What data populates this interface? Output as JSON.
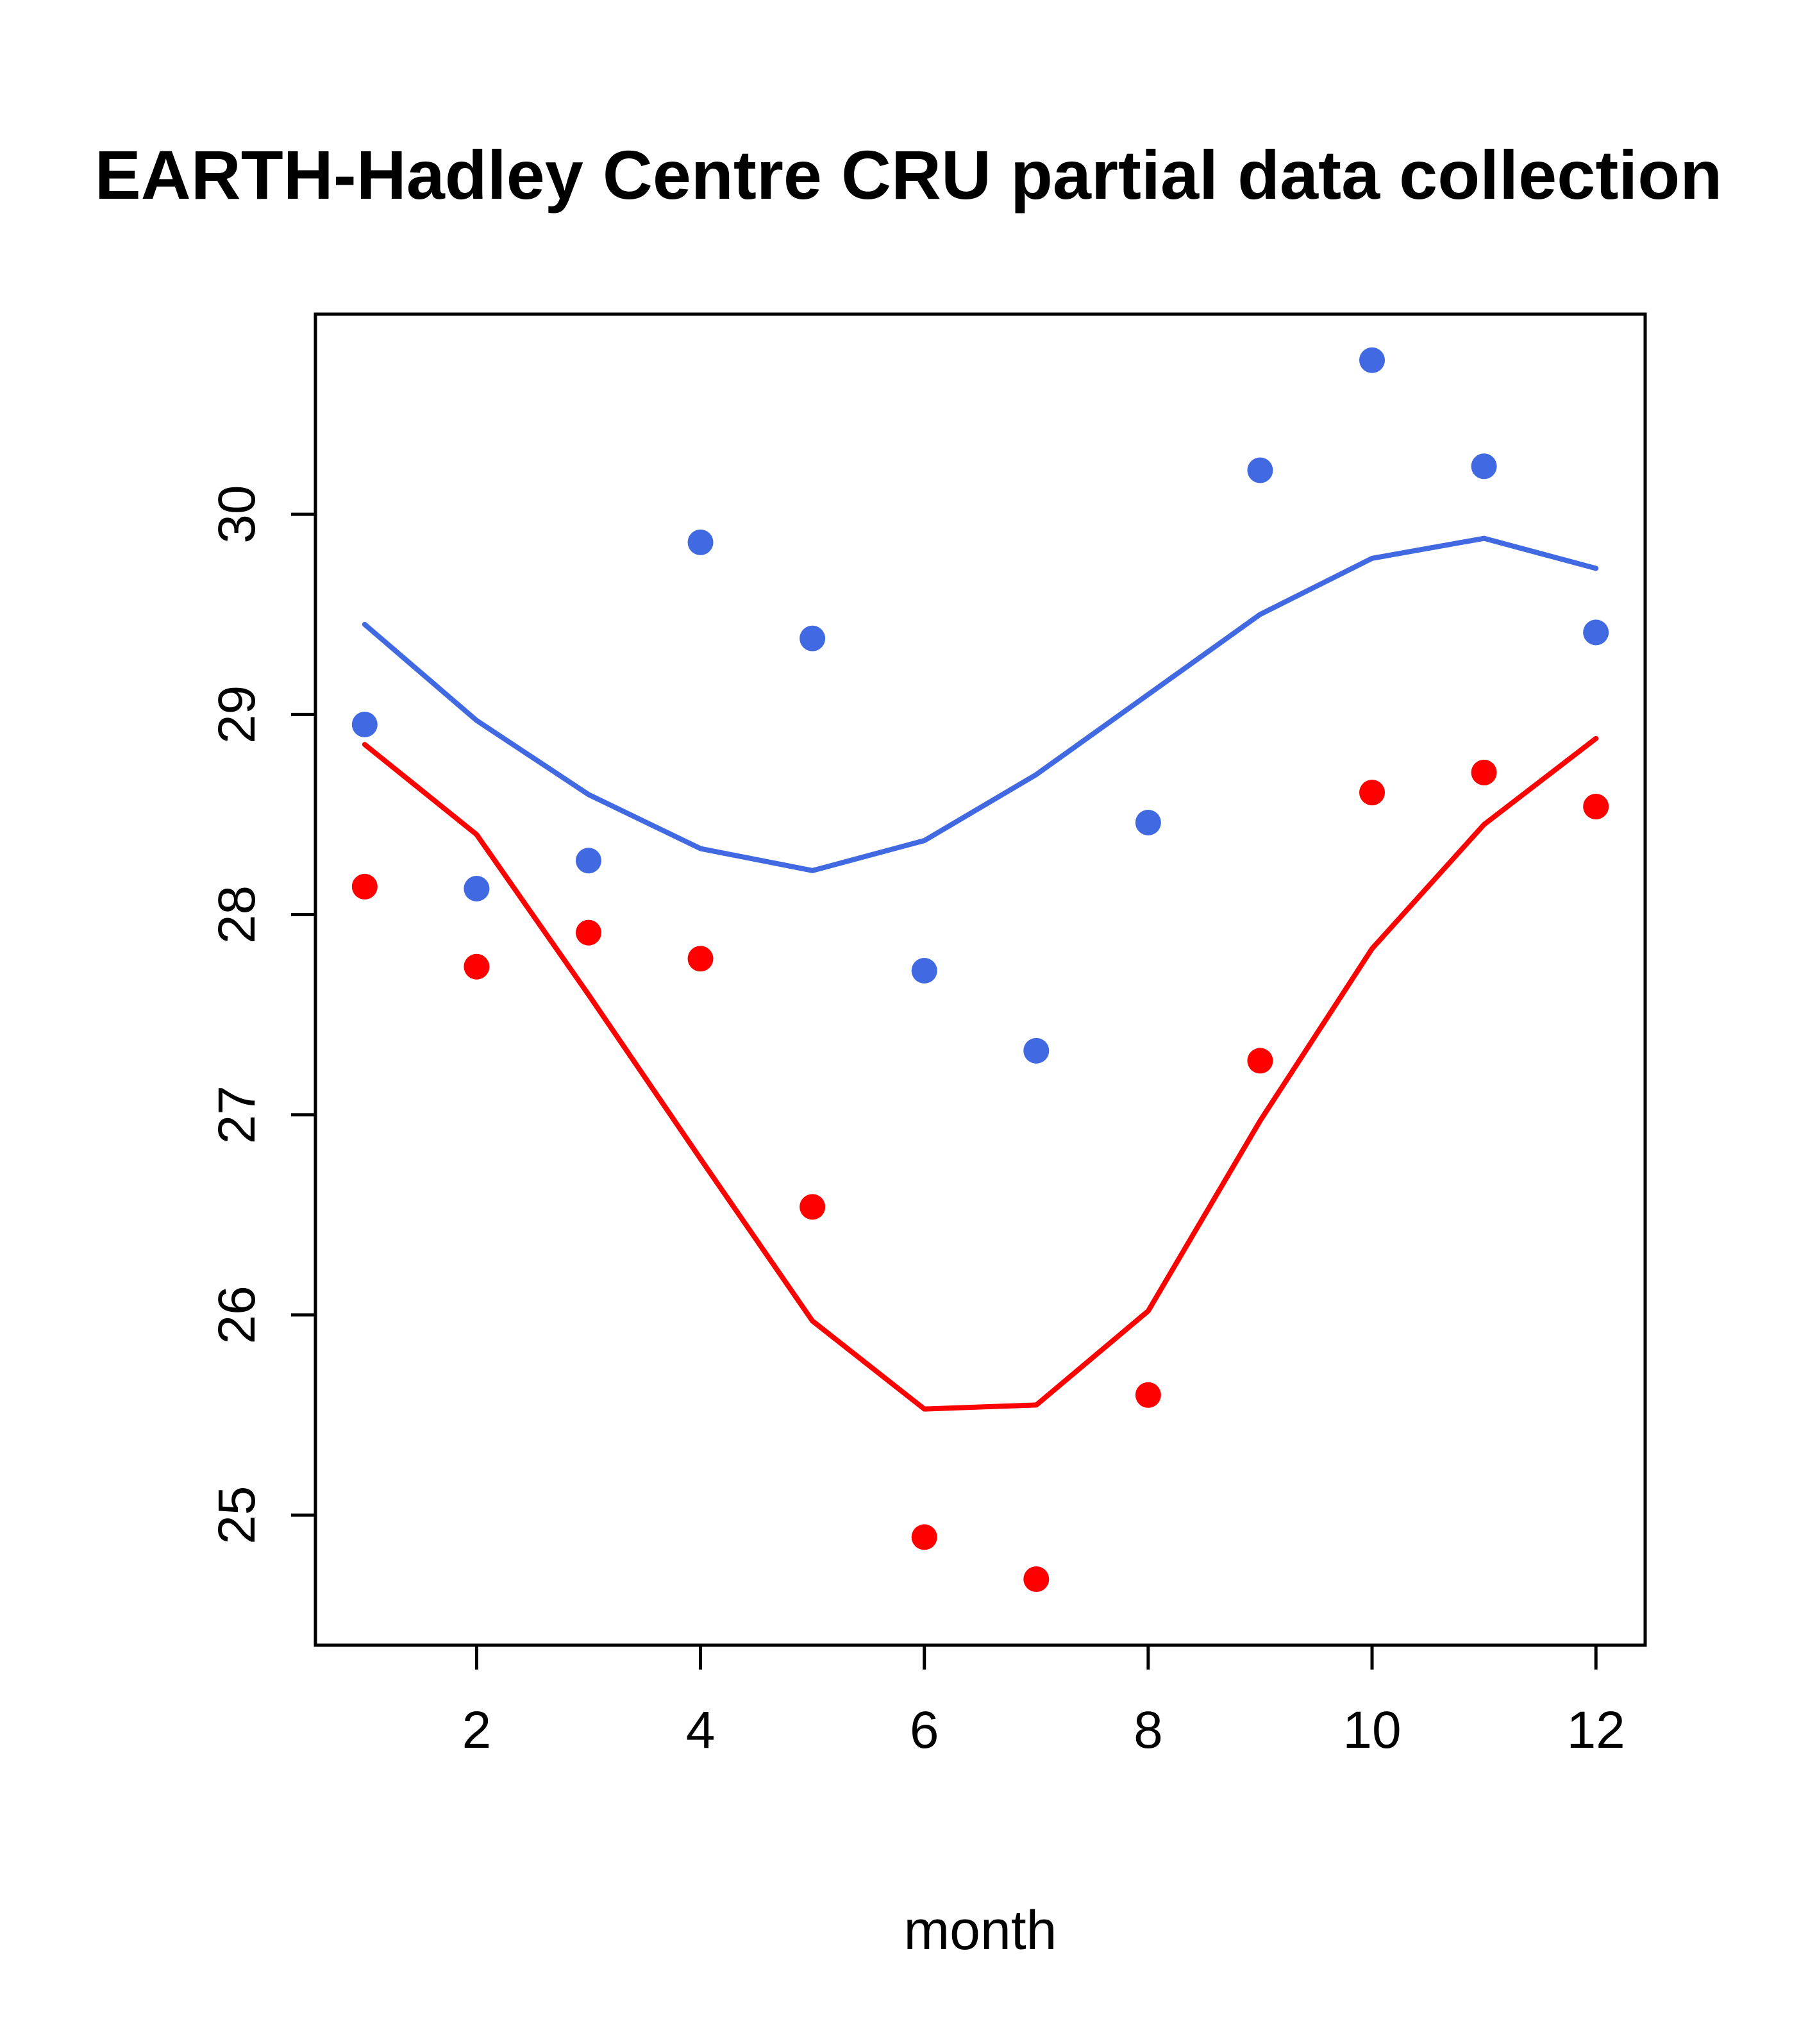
{
  "chart_data": {
    "type": "scatter",
    "title": "EARTH-Hadley Centre  CRU partial data collection",
    "xlabel": "month",
    "ylabel": "",
    "x": [
      1,
      2,
      3,
      4,
      5,
      6,
      7,
      8,
      9,
      10,
      11,
      12
    ],
    "xticks": [
      2,
      4,
      6,
      8,
      10,
      12
    ],
    "yticks": [
      25,
      26,
      27,
      28,
      29,
      30
    ],
    "xlim": [
      0.56,
      12.44
    ],
    "ylim": [
      24.35,
      31.0
    ],
    "grid": false,
    "legend": "none",
    "colors": {
      "blue": "#4169E1",
      "red": "#FF0000",
      "axis": "#000000",
      "background": "#FFFFFF"
    },
    "series": [
      {
        "name": "blue-points",
        "style": "points",
        "color": "#4169E1",
        "values": [
          28.95,
          28.13,
          28.27,
          29.86,
          29.38,
          27.72,
          27.32,
          28.46,
          30.22,
          30.77,
          30.24,
          29.41
        ]
      },
      {
        "name": "blue-line",
        "style": "line",
        "color": "#4169E1",
        "values": [
          29.45,
          28.97,
          28.6,
          28.33,
          28.22,
          28.37,
          28.7,
          29.1,
          29.5,
          29.78,
          29.88,
          29.73
        ]
      },
      {
        "name": "red-points",
        "style": "points",
        "color": "#FF0000",
        "values": [
          28.14,
          27.74,
          27.91,
          27.78,
          26.54,
          24.89,
          24.68,
          25.6,
          27.27,
          28.61,
          28.71,
          28.54
        ]
      },
      {
        "name": "red-line",
        "style": "line",
        "color": "#FF0000",
        "values": [
          28.85,
          28.4,
          27.6,
          26.78,
          25.97,
          25.53,
          25.55,
          26.02,
          26.97,
          27.83,
          28.45,
          28.88
        ]
      }
    ]
  }
}
